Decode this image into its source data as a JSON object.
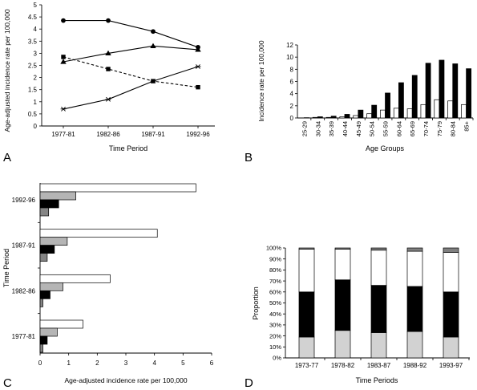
{
  "chart_data": [
    {
      "panel": "A",
      "type": "line",
      "categories": [
        "1977-81",
        "1982-86",
        "1987-91",
        "1992-96"
      ],
      "series": [
        {
          "marker": "circle",
          "dashed": false,
          "color": "#000000",
          "values": [
            4.35,
            4.35,
            3.9,
            3.25
          ]
        },
        {
          "marker": "triangle",
          "dashed": false,
          "color": "#000000",
          "values": [
            2.65,
            3.0,
            3.3,
            3.15
          ]
        },
        {
          "marker": "square",
          "dashed": true,
          "color": "#000000",
          "values": [
            2.85,
            2.35,
            1.85,
            1.6
          ]
        },
        {
          "marker": "star",
          "dashed": false,
          "color": "#000000",
          "values": [
            0.7,
            1.1,
            1.85,
            2.45
          ]
        }
      ],
      "xlabel": "Time Period",
      "ylabel": "Age-adjusted incidence rate per 100,000",
      "ylim": [
        0,
        5
      ],
      "yticks": [
        "0",
        "0.5",
        "1",
        "1.5",
        "2",
        "2.5",
        "3",
        "3.5",
        "4",
        "4.5",
        "5"
      ],
      "grid": false
    },
    {
      "panel": "B",
      "type": "bar",
      "categories": [
        "25-29",
        "30-34",
        "35-39",
        "40-44",
        "45-49",
        "50-54",
        "55-59",
        "60-64",
        "65-69",
        "70-74",
        "75-79",
        "80-84",
        "85+"
      ],
      "series": [
        {
          "color": "#ffffff",
          "values": [
            0,
            0.1,
            0.1,
            0.2,
            0.4,
            0.7,
            1.3,
            1.6,
            1.5,
            2.2,
            3.0,
            2.8,
            2.2
          ]
        },
        {
          "color": "#000000",
          "values": [
            0.05,
            0.2,
            0.3,
            0.6,
            1.3,
            2.1,
            4.1,
            5.8,
            7.0,
            9.0,
            9.5,
            8.9,
            8.1
          ]
        }
      ],
      "xlabel": "Age Groups",
      "ylabel": "Incidence rate per 100,000",
      "ylim": [
        0,
        12
      ],
      "yticks": [
        "0",
        "2",
        "4",
        "6",
        "8",
        "10",
        "12"
      ],
      "grid": false
    },
    {
      "panel": "C",
      "type": "bar",
      "horizontal": true,
      "categories": [
        "1977-81",
        "1982-86",
        "1987-91",
        "1992-96"
      ],
      "series": [
        {
          "color": "#ffffff",
          "values": [
            1.5,
            2.45,
            4.1,
            5.45
          ]
        },
        {
          "color": "#b5b5b5",
          "values": [
            0.6,
            0.8,
            0.95,
            1.25
          ]
        },
        {
          "color": "#000000",
          "values": [
            0.25,
            0.35,
            0.5,
            0.65
          ]
        },
        {
          "color": "#858585",
          "values": [
            0.1,
            0.1,
            0.25,
            0.3
          ]
        }
      ],
      "xlabel": "Age-adjusted incidence rate per 100,000",
      "ylabel": "Time Period",
      "xlim": [
        0,
        6
      ],
      "xticks": [
        "0",
        "1",
        "2",
        "3",
        "4",
        "5",
        "6"
      ],
      "grid": false
    },
    {
      "panel": "D",
      "type": "bar",
      "stacked": true,
      "categories": [
        "1973-77",
        "1978-82",
        "1983-87",
        "1988-92",
        "1993-97"
      ],
      "series": [
        {
          "color": "#d2d2d2",
          "values": [
            19,
            25,
            23,
            24,
            19
          ]
        },
        {
          "color": "#000000",
          "values": [
            41,
            46,
            43,
            41,
            41
          ]
        },
        {
          "color": "#ffffff",
          "values": [
            39,
            28,
            32,
            32,
            36
          ]
        },
        {
          "color": "#7f7f7f",
          "values": [
            1,
            1,
            2,
            3,
            4
          ]
        }
      ],
      "xlabel": "Time Periods",
      "ylabel": "Proportion",
      "ylim": [
        0,
        100
      ],
      "yticks": [
        "0%",
        "10%",
        "20%",
        "30%",
        "40%",
        "50%",
        "60%",
        "70%",
        "80%",
        "90%",
        "100%"
      ],
      "grid": false
    }
  ]
}
